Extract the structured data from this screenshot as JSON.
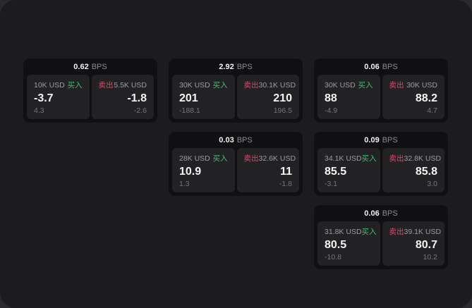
{
  "labels": {
    "bps_unit": "BPS",
    "buy": "买入",
    "sell": "卖出"
  },
  "colors": {
    "buy": "#3fbf6e",
    "sell": "#cf4f6a",
    "panel_bg": "#1c1c1e",
    "card_bg": "#101012",
    "inner_bg": "#222225"
  },
  "cards": [
    {
      "bps": "0.62",
      "buy": {
        "amount": "10K USD",
        "price": "-3.7",
        "delta": "4.3"
      },
      "sell": {
        "amount": "5.5K USD",
        "price": "-1.8",
        "delta": "-2.6"
      }
    },
    {
      "bps": "2.92",
      "buy": {
        "amount": "30K USD",
        "price": "201",
        "delta": "-188.1"
      },
      "sell": {
        "amount": "30.1K USD",
        "price": "210",
        "delta": "196.5"
      }
    },
    {
      "bps": "0.06",
      "buy": {
        "amount": "30K USD",
        "price": "88",
        "delta": "-4.9"
      },
      "sell": {
        "amount": "30K USD",
        "price": "88.2",
        "delta": "4.7"
      }
    },
    {
      "bps": "0.03",
      "buy": {
        "amount": "28K USD",
        "price": "10.9",
        "delta": "1.3"
      },
      "sell": {
        "amount": "32.6K USD",
        "price": "11",
        "delta": "-1.8"
      }
    },
    {
      "bps": "0.09",
      "buy": {
        "amount": "34.1K USD",
        "price": "85.5",
        "delta": "-3.1"
      },
      "sell": {
        "amount": "32.8K USD",
        "price": "85.8",
        "delta": "3.0"
      }
    },
    {
      "bps": "0.06",
      "buy": {
        "amount": "31.8K USD",
        "price": "80.5",
        "delta": "-10.8"
      },
      "sell": {
        "amount": "39.1K USD",
        "price": "80.7",
        "delta": "10.2"
      }
    }
  ]
}
